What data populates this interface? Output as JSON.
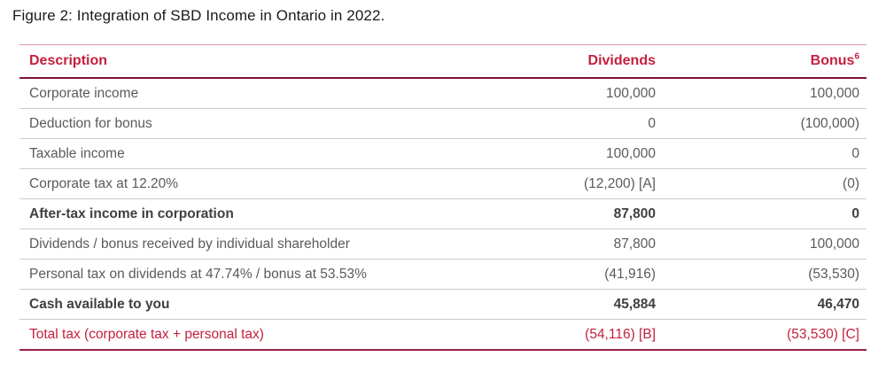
{
  "figure": {
    "title": "Figure 2: Integration of SBD Income in Ontario in 2022."
  },
  "colors": {
    "accent_red": "#C41F3E",
    "header_rule_dark": "#7E1230",
    "top_rule_light": "#DD97A2",
    "row_rule_gray": "#CBCBCB",
    "bottom_rule_red": "#9E2044",
    "body_text": "#595A5C",
    "bold_text": "#404042",
    "title_text": "#1A1A1A"
  },
  "table": {
    "columns": [
      {
        "label": "Description"
      },
      {
        "label": "Dividends"
      },
      {
        "label": "Bonus",
        "footnote": "6"
      }
    ],
    "rows": [
      {
        "description": "Corporate income",
        "dividends": "100,000",
        "bonus": "100,000",
        "emphasis": ""
      },
      {
        "description": "Deduction for bonus",
        "dividends": "0",
        "bonus": "(100,000)",
        "emphasis": ""
      },
      {
        "description": "Taxable income",
        "dividends": "100,000",
        "bonus": "0",
        "emphasis": ""
      },
      {
        "description": "Corporate tax at 12.20%",
        "dividends": "(12,200) [A]",
        "bonus": "(0)",
        "emphasis": ""
      },
      {
        "description": "After-tax income in corporation",
        "dividends": "87,800",
        "bonus": "0",
        "emphasis": "bold"
      },
      {
        "description": "Dividends / bonus received by individual shareholder",
        "dividends": "87,800",
        "bonus": "100,000",
        "emphasis": ""
      },
      {
        "description": "Personal tax on dividends at 47.74% / bonus at 53.53%",
        "dividends": "(41,916)",
        "bonus": "(53,530)",
        "emphasis": ""
      },
      {
        "description": "Cash available to you",
        "dividends": "45,884",
        "bonus": "46,470",
        "emphasis": "bold"
      },
      {
        "description": "Total tax (corporate tax + personal tax)",
        "dividends": "(54,116) [B]",
        "bonus": "(53,530) [C]",
        "emphasis": "total"
      }
    ]
  }
}
